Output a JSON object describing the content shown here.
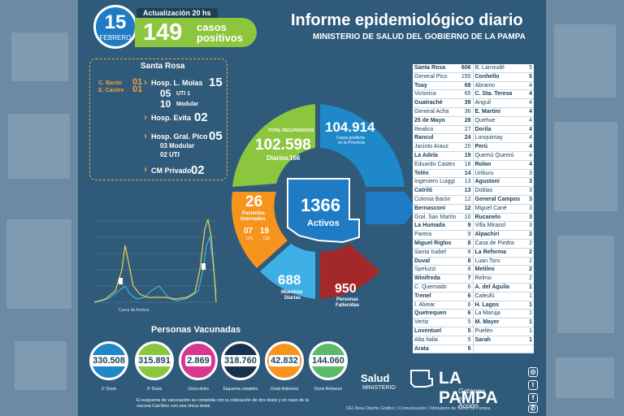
{
  "header": {
    "day": "15",
    "month": "FEBRERO",
    "update_label": "Actualización 20 hs",
    "cases": "149",
    "cases_label_1": "casos",
    "cases_label_2": "positivos",
    "title": "Informe epidemiológico diario",
    "subtitle": "MINISTERIO DE SALUD DEL GOBIERNO DE LA PAMPA"
  },
  "santa_rosa": {
    "heading": "Santa Rosa",
    "c_baron": "C. Barón",
    "c_baron_v": "01",
    "e_castex": "E. Castex",
    "e_castex_v": "01",
    "molas": "Hosp. L. Molas",
    "molas_v": "15",
    "uti": "05",
    "uti_label": "UTI 1",
    "modular": "10",
    "modular_label": "Modular",
    "evita": "Hosp. Evita",
    "evita_v": "02",
    "pico": "Hosp. Gral. Pico",
    "pico_v": "05",
    "pico_modular": "03 Modular",
    "pico_uti": "02 UTI",
    "cm": "CM Privado",
    "cm_v": "02"
  },
  "summary": {
    "total_recovered_label": "TOTAL RECUPERADOS",
    "total_recovered": "102.598",
    "daily_label": "Diarios",
    "daily": "166",
    "positives": "104.914",
    "positives_label_1": "Casos positivos",
    "positives_label_2": "en la Provincia",
    "interned": "26",
    "interned_label_1": "Pacientes",
    "interned_label_2": "Internados",
    "uti": "07",
    "uti_label": "UTI",
    "cm": "19",
    "cm_label": "CM",
    "active": "1366",
    "active_label": "Activos",
    "samples": "688",
    "samples_label_1": "Muestras",
    "samples_label_2": "Diarias",
    "deaths": "950",
    "deaths_label_1": "Personas",
    "deaths_label_2": "Fallecidas",
    "curve_label": "Curva de Activos"
  },
  "vaccination": {
    "heading": "Personas Vacunadas",
    "items": [
      {
        "value": "330.508",
        "label": "1º Dosis",
        "color": "#1e88c9"
      },
      {
        "value": "315.891",
        "label": "2º Dosis",
        "color": "#8cc63f"
      },
      {
        "value": "2.869",
        "label": "Única dosis",
        "color": "#d9368f"
      },
      {
        "value": "318.760",
        "label": "Esquema completo",
        "color": "#17324a"
      },
      {
        "value": "42.832",
        "label": "Dosis Adicional",
        "color": "#f7941e"
      },
      {
        "value": "144.060",
        "label": "Dosis Refuerzo",
        "color": "#5dba6a"
      }
    ],
    "note": "El esquema de vacunación se completa con la colocación de dos dosis y en caso de la vacuna CanSino con una única dosis"
  },
  "localities": [
    {
      "name": "Santa Rosa",
      "value": "606",
      "bold": true
    },
    {
      "name": "General Pico",
      "value": "150",
      "bold": false
    },
    {
      "name": "Toay",
      "value": "69",
      "bold": true
    },
    {
      "name": "Victorica",
      "value": "65",
      "bold": false
    },
    {
      "name": "Guatraché",
      "value": "39",
      "bold": true
    },
    {
      "name": "General Acha",
      "value": "36",
      "bold": false
    },
    {
      "name": "25 de Mayo",
      "value": "28",
      "bold": true
    },
    {
      "name": "Realico",
      "value": "27",
      "bold": false
    },
    {
      "name": "Rancul",
      "value": "24",
      "bold": true
    },
    {
      "name": "Jacinto Arauz",
      "value": "20",
      "bold": false
    },
    {
      "name": "La Adela",
      "value": "19",
      "bold": true
    },
    {
      "name": "Eduardo Castex",
      "value": "18",
      "bold": false
    },
    {
      "name": "Telén",
      "value": "14",
      "bold": true
    },
    {
      "name": "Ingeniero Luiggi",
      "value": "13",
      "bold": false
    },
    {
      "name": "Catriló",
      "value": "13",
      "bold": true
    },
    {
      "name": "Colonia Barón",
      "value": "12",
      "bold": false
    },
    {
      "name": "Bernasconi",
      "value": "12",
      "bold": true
    },
    {
      "name": "Gral. San Martín",
      "value": "10",
      "bold": false
    },
    {
      "name": "La Humada",
      "value": "9",
      "bold": true
    },
    {
      "name": "Parera",
      "value": "9",
      "bold": false
    },
    {
      "name": "Miguel Riglos",
      "value": "8",
      "bold": true
    },
    {
      "name": "Santa Isabel",
      "value": "8",
      "bold": false
    },
    {
      "name": "Duval",
      "value": "8",
      "bold": true
    },
    {
      "name": "Speluzzi",
      "value": "8",
      "bold": false
    },
    {
      "name": "Winifreda",
      "value": "7",
      "bold": true
    },
    {
      "name": "C. Quemado",
      "value": "6",
      "bold": false
    },
    {
      "name": "Trenel",
      "value": "6",
      "bold": true
    },
    {
      "name": "I. Alvear",
      "value": "6",
      "bold": false
    },
    {
      "name": "Quetrequen",
      "value": "6",
      "bold": true
    },
    {
      "name": "Vertiz",
      "value": "5",
      "bold": false
    },
    {
      "name": "Loventuel",
      "value": "5",
      "bold": true
    },
    {
      "name": "Alta Italia",
      "value": "5",
      "bold": false
    },
    {
      "name": "Arata",
      "value": "5",
      "bold": true
    },
    {
      "name": "B. Larroudé",
      "value": "5",
      "bold": false
    },
    {
      "name": "Conhello",
      "value": "5",
      "bold": true
    },
    {
      "name": "Abramo",
      "value": "4",
      "bold": false
    },
    {
      "name": "C. Sta. Teresa",
      "value": "4",
      "bold": true
    },
    {
      "name": "Anguil",
      "value": "4",
      "bold": false
    },
    {
      "name": "E. Martini",
      "value": "4",
      "bold": true
    },
    {
      "name": "Quehue",
      "value": "4",
      "bold": false
    },
    {
      "name": "Dorila",
      "value": "4",
      "bold": true
    },
    {
      "name": "Lonquimay",
      "value": "4",
      "bold": false
    },
    {
      "name": "Perú",
      "value": "4",
      "bold": true
    },
    {
      "name": "Quemú Quemú",
      "value": "4",
      "bold": false
    },
    {
      "name": "Rolon",
      "value": "4",
      "bold": true
    },
    {
      "name": "Uriburu",
      "value": "3",
      "bold": false
    },
    {
      "name": "Agustoni",
      "value": "3",
      "bold": true
    },
    {
      "name": "Doblas",
      "value": "3",
      "bold": false
    },
    {
      "name": "General Campos",
      "value": "3",
      "bold": true
    },
    {
      "name": "Miguel Cané",
      "value": "3",
      "bold": false
    },
    {
      "name": "Rucanelo",
      "value": "3",
      "bold": true
    },
    {
      "name": "Villa Mirasol",
      "value": "3",
      "bold": false
    },
    {
      "name": "Alpachiri",
      "value": "2",
      "bold": true
    },
    {
      "name": "Casa de Piedra",
      "value": "2",
      "bold": false
    },
    {
      "name": "La Reforma",
      "value": "2",
      "bold": true
    },
    {
      "name": "Luan Toro",
      "value": "2",
      "bold": false
    },
    {
      "name": "Metileo",
      "value": "2",
      "bold": true
    },
    {
      "name": "Relmo",
      "value": "2",
      "bold": false
    },
    {
      "name": "A. del Águila",
      "value": "1",
      "bold": true
    },
    {
      "name": "Caleufú",
      "value": "1",
      "bold": false
    },
    {
      "name": "H. Lagos",
      "value": "1",
      "bold": true
    },
    {
      "name": "La Maruja",
      "value": "1",
      "bold": false
    },
    {
      "name": "M. Mayer",
      "value": "1",
      "bold": true
    },
    {
      "name": "Puelén",
      "value": "1",
      "bold": false
    },
    {
      "name": "Sarah",
      "value": "1",
      "bold": true
    }
  ],
  "footer": {
    "salud": "Salud",
    "ministerio": "MINISTERIO",
    "la_pampa": "LA PAMPA",
    "gobierno": "Gobierno en Acción",
    "credit": "DEI Área Diseño Gráfico | Comunicación | Ministerio de Salud La Pampa"
  },
  "icons": [
    "instagram-icon",
    "twitter-icon",
    "facebook-icon",
    "whatsapp-icon"
  ],
  "colors": {
    "background": "#2f5a7a",
    "green": "#8cc63f",
    "orange": "#f7941e",
    "blue": "#1e88c9",
    "red": "#a3282a",
    "light_blue": "#3fb0e6"
  }
}
